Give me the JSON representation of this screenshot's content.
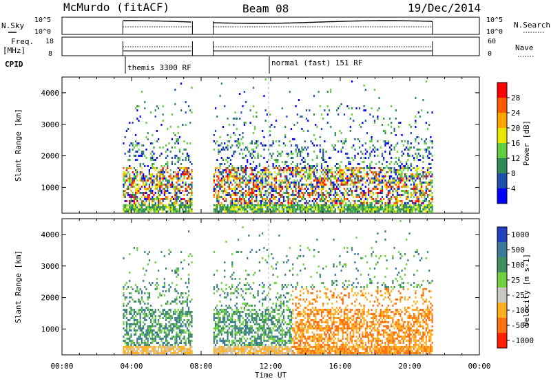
{
  "header": {
    "station": "McMurdo (fitACF)",
    "beam": "Beam 08",
    "date": "19/Dec/2014"
  },
  "top_panels": {
    "nsky_label": "N.Sky",
    "nsearch_label": "N.Search",
    "left_ticks": [
      "10^5",
      "10^0"
    ],
    "right_ticks": [
      "10^5",
      "10^0"
    ],
    "freq_label_1": "Freq.",
    "freq_label_2": "[MHz]",
    "freq_ticks": [
      "18",
      "8"
    ],
    "nave_label": "Nave",
    "nave_ticks": [
      "60",
      "0"
    ],
    "cpid_label": "CPID",
    "cpid_segments": [
      "themis 3300 RF",
      "normal (fast) 151 RF"
    ]
  },
  "axis": {
    "xlabel": "Time UT",
    "xticks": [
      "00:00",
      "04:00",
      "08:00",
      "12:00",
      "16:00",
      "20:00",
      "00:00"
    ],
    "xtick_hours": [
      0,
      4,
      8,
      12,
      16,
      20,
      24
    ],
    "ylabel": "Slant Range [km]",
    "yticks": [
      "1000",
      "2000",
      "3000",
      "4000"
    ],
    "ytick_values": [
      1000,
      2000,
      3000,
      4000
    ],
    "ylim": [
      180,
      4500
    ],
    "xlim": [
      0,
      24
    ]
  },
  "chart_data": [
    {
      "type": "heatmap",
      "name": "power",
      "colorbar_label": "Power [dB]",
      "colorbar_ticks": [
        "4",
        "8",
        "12",
        "16",
        "20",
        "24",
        "28"
      ],
      "colorbar_tick_values": [
        4,
        8,
        12,
        16,
        20,
        24,
        28
      ],
      "zlim": [
        0,
        30
      ],
      "colors": [
        "#0000ff",
        "#1f4fb0",
        "#2e8b57",
        "#5fcf40",
        "#e8e800",
        "#ffa500",
        "#ff5a00",
        "#ff0000"
      ],
      "observation_windows_ut": [
        [
          3.5,
          7.5
        ],
        [
          8.7,
          21.3
        ]
      ]
    },
    {
      "type": "heatmap",
      "name": "velocity",
      "colorbar_label": "Velocity [m s-1]",
      "colorbar_ticks": [
        "1000",
        "500",
        "100",
        "25",
        "-25",
        "-100",
        "-500",
        "-1000"
      ],
      "colorbar_tick_values": [
        1000,
        500,
        100,
        25,
        -25,
        -100,
        -500,
        -1000
      ],
      "zlim": [
        -1000,
        1000
      ],
      "colors": [
        "#2040c0",
        "#3a7a9a",
        "#3f8f5f",
        "#6fd040",
        "#c8c8c0",
        "#ffb020",
        "#ff7010",
        "#ff2000"
      ],
      "observation_windows_ut": [
        [
          3.5,
          7.5
        ],
        [
          8.7,
          21.3
        ]
      ]
    }
  ]
}
